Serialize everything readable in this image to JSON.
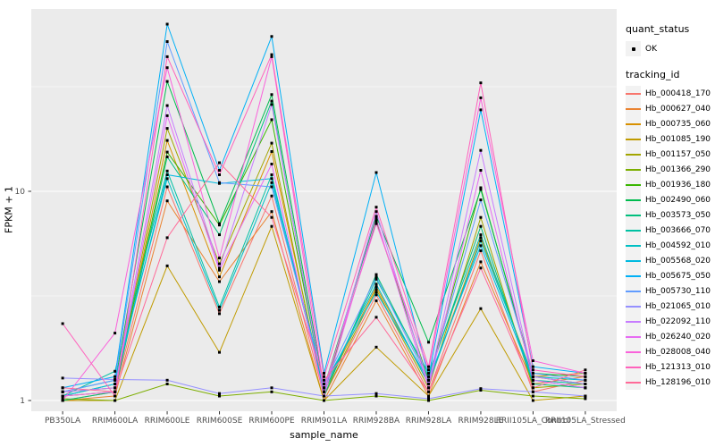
{
  "figure": {
    "panel_bg": "#EBEBEB",
    "grid_color": "#FFFFFF",
    "tick_mark_color": "#333333",
    "tick_label_color": "#4D4D4D",
    "point_color": "#000000",
    "legend_key_bg": "#F2F2F2"
  },
  "axes": {
    "x_title": "sample_name",
    "y_title": "FPKM + 1"
  },
  "legend": {
    "quant_title": "quant_status",
    "quant_items": [
      {
        "label": "OK",
        "shape": "point"
      }
    ],
    "series_title": "tracking_id"
  },
  "chart_data": {
    "type": "line",
    "title": "",
    "xlabel": "sample_name",
    "ylabel": "FPKM + 1",
    "y_scale": "log10",
    "y_ticks": [
      {
        "label": "1",
        "value": 1
      },
      {
        "label": "10",
        "value": 10
      }
    ],
    "y_minor_gridlines": [
      3.162,
      31.62
    ],
    "ylim": [
      0.89,
      74
    ],
    "legend_position": "right",
    "grid": true,
    "point_marker": "small-black-square",
    "categories": [
      "PB350LA",
      "RRIM600LA",
      "RRIM600LE",
      "RRIM600SE",
      "RRIM600PE",
      "RRIM901LA",
      "RRIM928BA",
      "RRIM928LA",
      "RRIM928LE",
      "RRII105LA_Control",
      "RRII105LA_Stressed"
    ],
    "series": [
      {
        "name": "Hb_000418_170",
        "color": "#F8766D",
        "values": [
          1.05,
          1.1,
          10.5,
          2.6,
          9.5,
          1.05,
          3.2,
          1.1,
          5.2,
          1.1,
          1.25
        ]
      },
      {
        "name": "Hb_000627_040",
        "color": "#EA8331",
        "values": [
          1.0,
          1.05,
          9.0,
          3.7,
          8.0,
          1.0,
          3.0,
          1.05,
          4.6,
          1.2,
          1.3
        ]
      },
      {
        "name": "Hb_000735_060",
        "color": "#D89000",
        "values": [
          1.0,
          1.1,
          17.5,
          3.9,
          15.5,
          1.1,
          3.5,
          1.2,
          6.0,
          1.3,
          1.35
        ]
      },
      {
        "name": "Hb_001085_190",
        "color": "#C09B00",
        "values": [
          1.0,
          1.0,
          4.4,
          1.7,
          6.8,
          1.0,
          1.8,
          1.05,
          2.75,
          1.0,
          1.05
        ]
      },
      {
        "name": "Hb_001157_050",
        "color": "#A3A500",
        "values": [
          1.05,
          1.1,
          20.0,
          4.5,
          17.0,
          1.05,
          3.4,
          1.15,
          7.5,
          1.15,
          1.2
        ]
      },
      {
        "name": "Hb_001366_290",
        "color": "#7CAE00",
        "values": [
          1.02,
          1.0,
          1.2,
          1.05,
          1.1,
          1.0,
          1.05,
          1.0,
          1.12,
          1.05,
          1.02
        ]
      },
      {
        "name": "Hb_001936_180",
        "color": "#39B600",
        "values": [
          1.1,
          1.15,
          15.4,
          6.9,
          22.0,
          1.1,
          7.2,
          1.25,
          10.4,
          1.3,
          1.2
        ]
      },
      {
        "name": "Hb_002490_060",
        "color": "#00BB4E",
        "values": [
          1.05,
          1.2,
          33.5,
          7.0,
          29.0,
          1.15,
          7.6,
          1.9,
          10.2,
          1.35,
          1.3
        ]
      },
      {
        "name": "Hb_003573_050",
        "color": "#00BF7D",
        "values": [
          1.0,
          1.1,
          14.6,
          6.2,
          27.0,
          1.05,
          4.0,
          1.3,
          6.8,
          1.2,
          1.15
        ]
      },
      {
        "name": "Hb_003666_070",
        "color": "#00C1A3",
        "values": [
          1.05,
          1.38,
          12.5,
          2.8,
          12.0,
          1.1,
          3.8,
          1.35,
          6.2,
          1.25,
          1.2
        ]
      },
      {
        "name": "Hb_004592_010",
        "color": "#00BFC4",
        "values": [
          1.1,
          1.25,
          11.5,
          2.7,
          11.0,
          1.15,
          3.6,
          1.2,
          5.8,
          1.3,
          1.25
        ]
      },
      {
        "name": "Hb_005568_020",
        "color": "#00BAE0",
        "values": [
          1.05,
          1.2,
          12.0,
          10.9,
          11.5,
          1.2,
          3.3,
          1.25,
          5.5,
          1.25,
          1.15
        ]
      },
      {
        "name": "Hb_005675_050",
        "color": "#00B0F6",
        "values": [
          1.15,
          1.3,
          63.0,
          12.6,
          55.0,
          1.35,
          12.3,
          1.3,
          24.5,
          1.45,
          1.35
        ]
      },
      {
        "name": "Hb_005730_110",
        "color": "#619CFF",
        "values": [
          1.1,
          1.25,
          52.0,
          11.0,
          10.5,
          1.2,
          3.9,
          1.25,
          9.1,
          1.35,
          1.25
        ]
      },
      {
        "name": "Hb_021065_010",
        "color": "#9590FF",
        "values": [
          1.28,
          1.26,
          1.25,
          1.08,
          1.15,
          1.05,
          1.08,
          1.02,
          1.14,
          1.1,
          1.05
        ]
      },
      {
        "name": "Hb_022092_110",
        "color": "#C77CFF",
        "values": [
          1.1,
          1.15,
          25.7,
          4.3,
          26.0,
          1.1,
          8.0,
          1.2,
          15.7,
          1.3,
          1.2
        ]
      },
      {
        "name": "Hb_026240_020",
        "color": "#E76BF3",
        "values": [
          1.05,
          1.1,
          23.0,
          4.2,
          13.5,
          1.05,
          7.4,
          1.15,
          12.6,
          1.25,
          1.15
        ]
      },
      {
        "name": "Hb_028008_040",
        "color": "#FA62DB",
        "values": [
          1.0,
          2.1,
          39.0,
          4.8,
          44.0,
          1.15,
          7.0,
          1.4,
          28.0,
          1.55,
          1.35
        ]
      },
      {
        "name": "Hb_121313_010",
        "color": "#FF62BC",
        "values": [
          2.33,
          1.05,
          44.0,
          12.0,
          45.0,
          1.3,
          8.4,
          1.45,
          33.0,
          1.4,
          1.3
        ]
      },
      {
        "name": "Hb_128196_010",
        "color": "#FF6A98",
        "values": [
          1.15,
          1.1,
          6.0,
          13.7,
          7.5,
          1.25,
          2.5,
          1.1,
          4.3,
          1.15,
          1.4
        ]
      }
    ]
  }
}
